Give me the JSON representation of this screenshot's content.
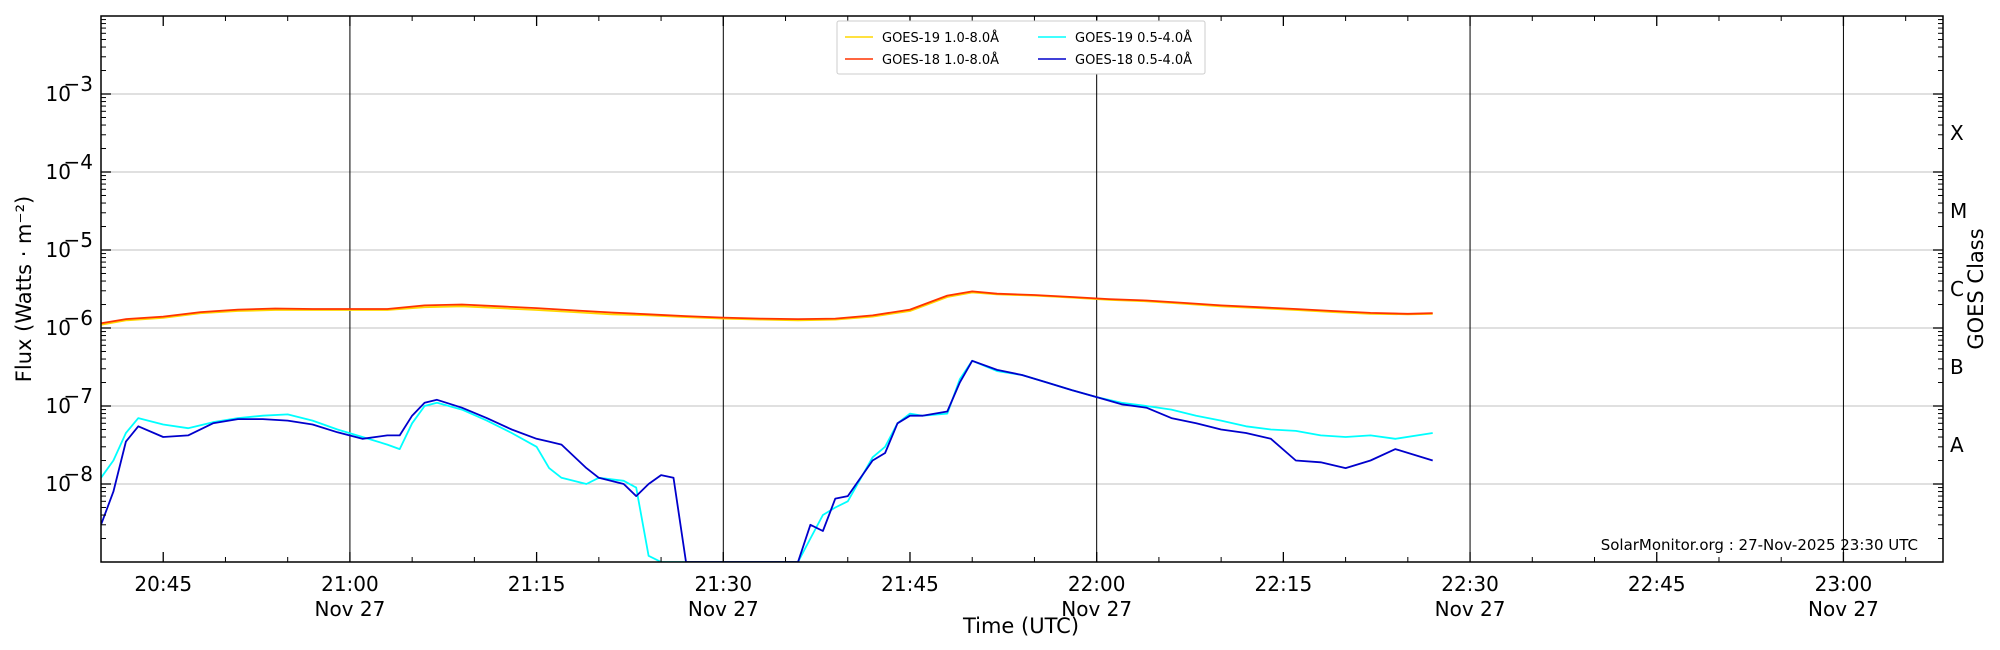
{
  "chart_data": {
    "type": "line",
    "xlabel": "Time (UTC)",
    "ylabel": "Flux (Watts · m⁻²)",
    "right_axis_label": "GOES Class",
    "credit": "SolarMonitor.org : 27-Nov-2025 23:30 UTC",
    "y_scale": "log",
    "ylim": [
      1e-09,
      0.01
    ],
    "xlim": [
      "20:40",
      "23:08"
    ],
    "grid": "horizontal",
    "legend_position": "top-center",
    "x_ticks": [
      {
        "time": "20:45",
        "label": "20:45",
        "date": ""
      },
      {
        "time": "21:00",
        "label": "21:00",
        "date": "Nov 27"
      },
      {
        "time": "21:15",
        "label": "21:15",
        "date": ""
      },
      {
        "time": "21:30",
        "label": "21:30",
        "date": "Nov 27"
      },
      {
        "time": "21:45",
        "label": "21:45",
        "date": ""
      },
      {
        "time": "22:00",
        "label": "22:00",
        "date": "Nov 27"
      },
      {
        "time": "22:15",
        "label": "22:15",
        "date": ""
      },
      {
        "time": "22:30",
        "label": "22:30",
        "date": "Nov 27"
      },
      {
        "time": "22:45",
        "label": "22:45",
        "date": ""
      },
      {
        "time": "23:00",
        "label": "23:00",
        "date": "Nov 27"
      }
    ],
    "day_lines": [
      "21:00",
      "21:30",
      "22:00",
      "22:30",
      "23:00"
    ],
    "y_ticks": [
      {
        "value": 1e-08,
        "base": "10",
        "exp": "−8"
      },
      {
        "value": 1e-07,
        "base": "10",
        "exp": "−7"
      },
      {
        "value": 1e-06,
        "base": "10",
        "exp": "−6"
      },
      {
        "value": 1e-05,
        "base": "10",
        "exp": "−5"
      },
      {
        "value": 0.0001,
        "base": "10",
        "exp": "−4"
      },
      {
        "value": 0.001,
        "base": "10",
        "exp": "−3"
      }
    ],
    "goes_classes": [
      {
        "label": "A",
        "value": 3.16e-08
      },
      {
        "label": "B",
        "value": 3.16e-07
      },
      {
        "label": "C",
        "value": 3.16e-06
      },
      {
        "label": "M",
        "value": 3.16e-05
      },
      {
        "label": "X",
        "value": 0.000316
      }
    ],
    "series": [
      {
        "name": "GOES-19 1.0-8.0Å",
        "color": "#ffd700",
        "x": [
          "20:40",
          "20:42",
          "20:45",
          "20:48",
          "20:51",
          "20:54",
          "20:57",
          "21:00",
          "21:03",
          "21:06",
          "21:09",
          "21:12",
          "21:15",
          "21:18",
          "21:21",
          "21:24",
          "21:27",
          "21:30",
          "21:33",
          "21:36",
          "21:39",
          "21:42",
          "21:45",
          "21:48",
          "21:50",
          "21:52",
          "21:55",
          "21:58",
          "22:01",
          "22:04",
          "22:07",
          "22:10",
          "22:13",
          "22:16",
          "22:19",
          "22:22",
          "22:25",
          "22:27"
        ],
        "y": [
          1.1e-06,
          1.25e-06,
          1.35e-06,
          1.55e-06,
          1.65e-06,
          1.7e-06,
          1.7e-06,
          1.7e-06,
          1.7e-06,
          1.85e-06,
          1.9e-06,
          1.8e-06,
          1.7e-06,
          1.6e-06,
          1.5e-06,
          1.45e-06,
          1.38e-06,
          1.32e-06,
          1.28e-06,
          1.25e-06,
          1.28e-06,
          1.4e-06,
          1.65e-06,
          2.5e-06,
          2.85e-06,
          2.7e-06,
          2.6e-06,
          2.45e-06,
          2.3e-06,
          2.2e-06,
          2.05e-06,
          1.9e-06,
          1.8e-06,
          1.7e-06,
          1.6e-06,
          1.52e-06,
          1.5e-06,
          1.52e-06
        ]
      },
      {
        "name": "GOES-18 1.0-8.0Å",
        "color": "#ff3300",
        "x": [
          "20:40",
          "20:42",
          "20:45",
          "20:48",
          "20:51",
          "20:54",
          "20:57",
          "21:00",
          "21:03",
          "21:06",
          "21:09",
          "21:12",
          "21:15",
          "21:18",
          "21:21",
          "21:24",
          "21:27",
          "21:30",
          "21:33",
          "21:36",
          "21:39",
          "21:42",
          "21:45",
          "21:48",
          "21:50",
          "21:52",
          "21:55",
          "21:58",
          "22:01",
          "22:04",
          "22:07",
          "22:10",
          "22:13",
          "22:16",
          "22:19",
          "22:22",
          "22:25",
          "22:27"
        ],
        "y": [
          1.15e-06,
          1.3e-06,
          1.4e-06,
          1.6e-06,
          1.72e-06,
          1.78e-06,
          1.75e-06,
          1.75e-06,
          1.75e-06,
          1.95e-06,
          2e-06,
          1.9e-06,
          1.8e-06,
          1.68e-06,
          1.58e-06,
          1.5e-06,
          1.42e-06,
          1.36e-06,
          1.32e-06,
          1.3e-06,
          1.32e-06,
          1.45e-06,
          1.72e-06,
          2.6e-06,
          2.95e-06,
          2.75e-06,
          2.65e-06,
          2.5e-06,
          2.35e-06,
          2.25e-06,
          2.1e-06,
          1.95e-06,
          1.85e-06,
          1.75e-06,
          1.65e-06,
          1.56e-06,
          1.52e-06,
          1.55e-06
        ]
      },
      {
        "name": "GOES-19 0.5-4.0Å",
        "color": "#00ffff",
        "x": [
          "20:40",
          "20:41",
          "20:42",
          "20:43",
          "20:45",
          "20:47",
          "20:49",
          "20:51",
          "20:53",
          "20:55",
          "20:57",
          "20:59",
          "21:01",
          "21:03",
          "21:04",
          "21:05",
          "21:06",
          "21:07",
          "21:09",
          "21:11",
          "21:13",
          "21:15",
          "21:16",
          "21:17",
          "21:19",
          "21:20",
          "21:22",
          "21:23",
          "21:24",
          "21:25",
          "21:26",
          "21:27",
          "21:30",
          "21:33",
          "21:35",
          "21:36",
          "21:37",
          "21:38",
          "21:39",
          "21:40",
          "21:42",
          "21:43",
          "21:44",
          "21:45",
          "21:46",
          "21:48",
          "21:49",
          "21:50",
          "21:52",
          "21:54",
          "21:56",
          "21:58",
          "22:00",
          "22:02",
          "22:04",
          "22:06",
          "22:08",
          "22:10",
          "22:12",
          "22:14",
          "22:16",
          "22:18",
          "22:20",
          "22:22",
          "22:24",
          "22:27"
        ],
        "y": [
          1.2e-08,
          2e-08,
          4.5e-08,
          7e-08,
          5.8e-08,
          5.2e-08,
          6.2e-08,
          7e-08,
          7.5e-08,
          7.8e-08,
          6.5e-08,
          5e-08,
          4e-08,
          3.2e-08,
          2.8e-08,
          6e-08,
          1e-07,
          1.1e-07,
          9e-08,
          6.5e-08,
          4.5e-08,
          3e-08,
          1.6e-08,
          1.2e-08,
          1e-08,
          1.2e-08,
          1.1e-08,
          9e-09,
          1.2e-09,
          1e-09,
          1e-09,
          1e-09,
          1e-09,
          1e-09,
          1e-09,
          1e-09,
          2e-09,
          4e-09,
          5e-09,
          6e-09,
          2.2e-08,
          3e-08,
          6e-08,
          8e-08,
          7.5e-08,
          8e-08,
          2.2e-07,
          3.8e-07,
          2.8e-07,
          2.5e-07,
          2e-07,
          1.6e-07,
          1.3e-07,
          1.1e-07,
          1e-07,
          9e-08,
          7.5e-08,
          6.5e-08,
          5.5e-08,
          5e-08,
          4.8e-08,
          4.2e-08,
          4e-08,
          4.2e-08,
          3.8e-08,
          4.5e-08
        ]
      },
      {
        "name": "GOES-18 0.5-4.0Å",
        "color": "#0000cc",
        "x": [
          "20:40",
          "20:41",
          "20:42",
          "20:43",
          "20:45",
          "20:47",
          "20:49",
          "20:51",
          "20:53",
          "20:55",
          "20:57",
          "20:59",
          "21:01",
          "21:03",
          "21:04",
          "21:05",
          "21:06",
          "21:07",
          "21:09",
          "21:11",
          "21:13",
          "21:15",
          "21:16",
          "21:17",
          "21:19",
          "21:20",
          "21:22",
          "21:23",
          "21:24",
          "21:25",
          "21:26",
          "21:27",
          "21:30",
          "21:33",
          "21:35",
          "21:36",
          "21:37",
          "21:38",
          "21:39",
          "21:40",
          "21:42",
          "21:43",
          "21:44",
          "21:45",
          "21:46",
          "21:48",
          "21:49",
          "21:50",
          "21:52",
          "21:54",
          "21:56",
          "21:58",
          "22:00",
          "22:02",
          "22:04",
          "22:06",
          "22:08",
          "22:10",
          "22:12",
          "22:14",
          "22:16",
          "22:18",
          "22:20",
          "22:22",
          "22:24",
          "22:27"
        ],
        "y": [
          3e-09,
          8e-09,
          3.5e-08,
          5.5e-08,
          4e-08,
          4.2e-08,
          6e-08,
          6.8e-08,
          6.8e-08,
          6.5e-08,
          5.8e-08,
          4.6e-08,
          3.8e-08,
          4.2e-08,
          4.2e-08,
          7.5e-08,
          1.1e-07,
          1.2e-07,
          9.5e-08,
          7e-08,
          5e-08,
          3.8e-08,
          3.5e-08,
          3.2e-08,
          1.6e-08,
          1.2e-08,
          1e-08,
          7e-09,
          1e-08,
          1.3e-08,
          1.2e-08,
          1e-09,
          1e-09,
          1e-09,
          1e-09,
          1e-09,
          3e-09,
          2.5e-09,
          6.5e-09,
          7e-09,
          2e-08,
          2.5e-08,
          6e-08,
          7.5e-08,
          7.5e-08,
          8.5e-08,
          2e-07,
          3.8e-07,
          2.9e-07,
          2.5e-07,
          2e-07,
          1.6e-07,
          1.3e-07,
          1.05e-07,
          9.5e-08,
          7e-08,
          6e-08,
          5e-08,
          4.5e-08,
          3.8e-08,
          2e-08,
          1.9e-08,
          1.6e-08,
          2e-08,
          2.8e-08,
          2e-08
        ]
      }
    ]
  }
}
